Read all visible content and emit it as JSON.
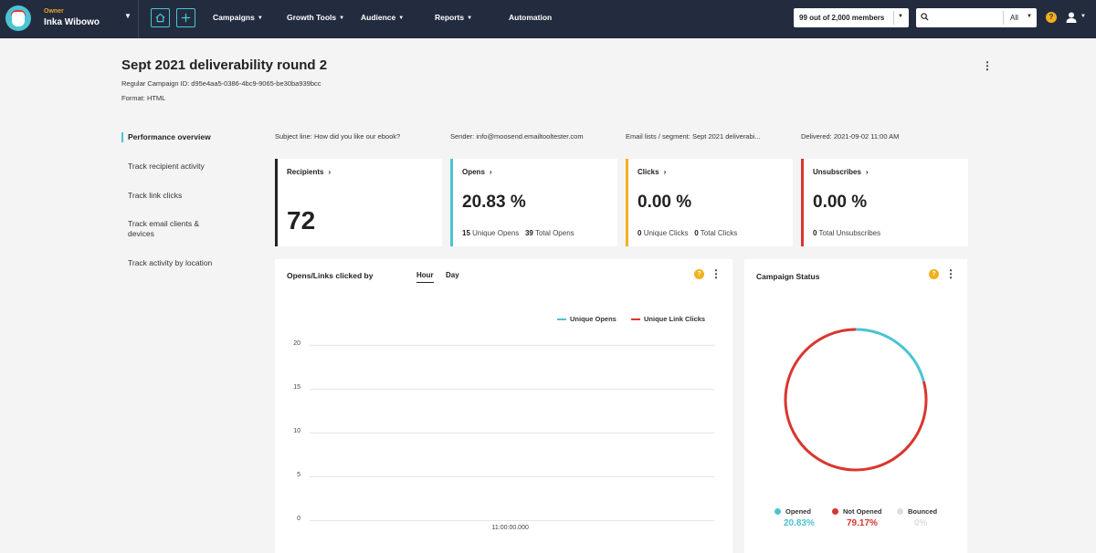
{
  "topbar": {
    "owner_role": "Owner",
    "owner_name": "Inka Wibowo",
    "nav": [
      {
        "label": "Campaigns"
      },
      {
        "label": "Growth Tools"
      },
      {
        "label": "Audience"
      },
      {
        "label": "Reports"
      },
      {
        "label": "Automation"
      }
    ],
    "members": "99 out of 2,000 members",
    "search_scope": "All",
    "help": "?"
  },
  "page": {
    "title": "Sept 2021 deliverability round 2",
    "campaign_id_label": "Regular Campaign ID:",
    "campaign_id": "d95e4aa5-0386-4bc9-9065-be30ba939bcc",
    "format_label": "Format:",
    "format": "HTML"
  },
  "sidenav": [
    {
      "label": "Performance overview",
      "active": true
    },
    {
      "label": "Track recipient activity"
    },
    {
      "label": "Track link clicks"
    },
    {
      "label": "Track email clients & devices"
    },
    {
      "label": "Track activity by location"
    }
  ],
  "info": {
    "subject": "Subject line: How did you like our ebook?",
    "sender": "Sender: info@moosend.emailtooltester.com",
    "lists": "Email lists / segment: Sept 2021 deliverabi...",
    "delivered": "Delivered: 2021-09-02 11:00 AM"
  },
  "cards": {
    "recipients": {
      "title": "Recipients",
      "value": "72"
    },
    "opens": {
      "title": "Opens",
      "value": "20.83 %",
      "unique": "15",
      "unique_label": "Unique Opens",
      "total": "39",
      "total_label": "Total Opens"
    },
    "clicks": {
      "title": "Clicks",
      "value": "0.00 %",
      "unique": "0",
      "unique_label": "Unique Clicks",
      "total": "0",
      "total_label": "Total Clicks"
    },
    "unsubscribes": {
      "title": "Unsubscribes",
      "value": "0.00 %",
      "total": "0",
      "total_label": "Total Unsubscribes"
    }
  },
  "colors": {
    "accent": "#4cc3d3",
    "opens": "#4cc3d3",
    "clicks": "#f2b01e",
    "unsubscribes": "#d9362f",
    "not_opened": "#d9362f",
    "bounced": "#dddddd",
    "nav_bg": "#232c3f"
  },
  "line_panel": {
    "title": "Opens/Links clicked by",
    "tabs": [
      "Hour",
      "Day"
    ],
    "active_tab": "Hour",
    "help": "?"
  },
  "status_panel": {
    "title": "Campaign Status",
    "help": "?"
  },
  "chart_data": [
    {
      "type": "line",
      "title": "Opens/Links clicked by",
      "x": [
        "11:00:00.000"
      ],
      "series": [
        {
          "name": "Unique Opens",
          "values": [
            0
          ]
        },
        {
          "name": "Unique Link Clicks",
          "values": [
            0
          ]
        }
      ],
      "yticks": [
        "0",
        "5",
        "10",
        "15",
        "20"
      ],
      "ylim": [
        0,
        20
      ],
      "grid": true,
      "legend_position": "top-right"
    },
    {
      "type": "pie",
      "title": "Campaign Status",
      "categories": [
        "Opened",
        "Not Opened",
        "Bounced"
      ],
      "values": [
        20.83,
        79.17,
        0
      ],
      "labels": [
        "20.83%",
        "79.17%",
        "0%"
      ],
      "donut": true,
      "legend_position": "bottom"
    }
  ]
}
